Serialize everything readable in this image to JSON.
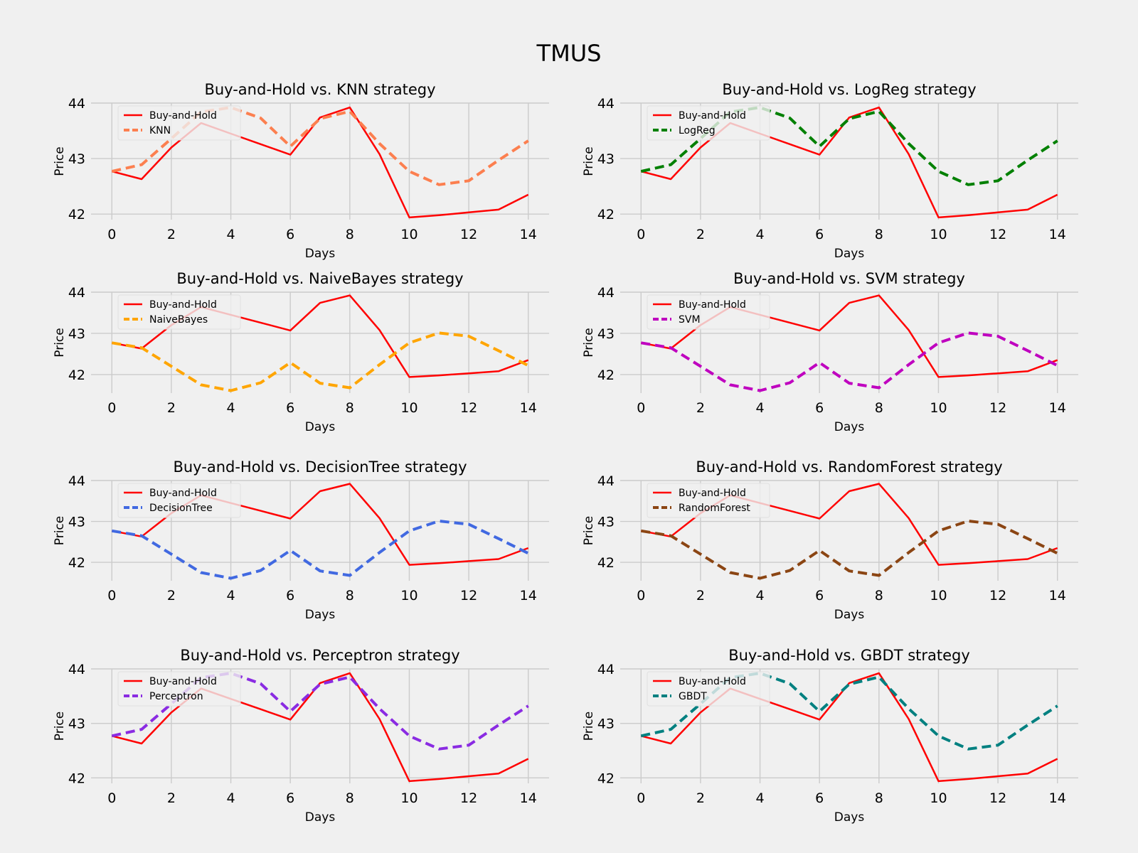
{
  "figure": {
    "title": "TMUS"
  },
  "colors": {
    "background": "#f0f0f0",
    "grid": "#cbcbcb",
    "buy_and_hold": "#ff0000"
  },
  "chart_data": [
    {
      "type": "line",
      "title": "Buy-and-Hold vs. KNN strategy",
      "xlabel": "Days",
      "ylabel": "Price",
      "xlim": [
        -0.7,
        14.7
      ],
      "ylim": [
        41.9,
        44.0
      ],
      "xticks": [
        0,
        2,
        4,
        6,
        8,
        10,
        12,
        14
      ],
      "yticks": [
        42,
        43,
        44
      ],
      "grid": true,
      "legend_position": "upper-left",
      "x": [
        0,
        1,
        2,
        3,
        4,
        5,
        6,
        7,
        8,
        9,
        10,
        11,
        12,
        13,
        14
      ],
      "series": [
        {
          "name": "Buy-and-Hold",
          "color": "#ff0000",
          "dash": "solid",
          "values": [
            42.77,
            42.63,
            43.2,
            43.64,
            43.45,
            43.26,
            43.07,
            43.74,
            43.92,
            43.08,
            41.94,
            41.98,
            42.03,
            42.08,
            42.35
          ]
        },
        {
          "name": "KNN",
          "color": "#fc7f4f",
          "dash": "dashed",
          "values": [
            42.77,
            42.89,
            43.36,
            43.84,
            43.92,
            43.73,
            43.22,
            43.72,
            43.85,
            43.27,
            42.77,
            42.53,
            42.6,
            42.97,
            43.32
          ]
        }
      ]
    },
    {
      "type": "line",
      "title": "Buy-and-Hold vs. LogReg strategy",
      "xlabel": "Days",
      "ylabel": "Price",
      "xlim": [
        -0.7,
        14.7
      ],
      "ylim": [
        41.9,
        44.0
      ],
      "xticks": [
        0,
        2,
        4,
        6,
        8,
        10,
        12,
        14
      ],
      "yticks": [
        42,
        43,
        44
      ],
      "grid": true,
      "legend_position": "upper-left",
      "x": [
        0,
        1,
        2,
        3,
        4,
        5,
        6,
        7,
        8,
        9,
        10,
        11,
        12,
        13,
        14
      ],
      "series": [
        {
          "name": "Buy-and-Hold",
          "color": "#ff0000",
          "dash": "solid",
          "values": [
            42.77,
            42.63,
            43.2,
            43.64,
            43.45,
            43.26,
            43.07,
            43.74,
            43.92,
            43.08,
            41.94,
            41.98,
            42.03,
            42.08,
            42.35
          ]
        },
        {
          "name": "LogReg",
          "color": "#008000",
          "dash": "dashed",
          "values": [
            42.77,
            42.89,
            43.36,
            43.84,
            43.92,
            43.73,
            43.22,
            43.72,
            43.85,
            43.27,
            42.77,
            42.53,
            42.6,
            42.97,
            43.32
          ]
        }
      ]
    },
    {
      "type": "line",
      "title": "Buy-and-Hold vs. NaiveBayes strategy",
      "xlabel": "Days",
      "ylabel": "Price",
      "xlim": [
        -0.7,
        14.7
      ],
      "ylim": [
        41.55,
        44.0
      ],
      "xticks": [
        0,
        2,
        4,
        6,
        8,
        10,
        12,
        14
      ],
      "yticks": [
        42,
        43,
        44
      ],
      "grid": true,
      "legend_position": "upper-left",
      "x": [
        0,
        1,
        2,
        3,
        4,
        5,
        6,
        7,
        8,
        9,
        10,
        11,
        12,
        13,
        14
      ],
      "series": [
        {
          "name": "Buy-and-Hold",
          "color": "#ff0000",
          "dash": "solid",
          "values": [
            42.77,
            42.63,
            43.2,
            43.64,
            43.45,
            43.26,
            43.07,
            43.74,
            43.92,
            43.08,
            41.94,
            41.98,
            42.03,
            42.08,
            42.35
          ]
        },
        {
          "name": "NaiveBayes",
          "color": "#ffa500",
          "dash": "dashed",
          "values": [
            42.77,
            42.65,
            42.2,
            41.75,
            41.61,
            41.8,
            42.29,
            41.79,
            41.68,
            42.24,
            42.77,
            43.01,
            42.93,
            42.58,
            42.22
          ]
        }
      ]
    },
    {
      "type": "line",
      "title": "Buy-and-Hold vs. SVM strategy",
      "xlabel": "Days",
      "ylabel": "Price",
      "xlim": [
        -0.7,
        14.7
      ],
      "ylim": [
        41.55,
        44.0
      ],
      "xticks": [
        0,
        2,
        4,
        6,
        8,
        10,
        12,
        14
      ],
      "yticks": [
        42,
        43,
        44
      ],
      "grid": true,
      "legend_position": "upper-left",
      "x": [
        0,
        1,
        2,
        3,
        4,
        5,
        6,
        7,
        8,
        9,
        10,
        11,
        12,
        13,
        14
      ],
      "series": [
        {
          "name": "Buy-and-Hold",
          "color": "#ff0000",
          "dash": "solid",
          "values": [
            42.77,
            42.63,
            43.2,
            43.64,
            43.45,
            43.26,
            43.07,
            43.74,
            43.92,
            43.08,
            41.94,
            41.98,
            42.03,
            42.08,
            42.35
          ]
        },
        {
          "name": "SVM",
          "color": "#bf00bf",
          "dash": "dashed",
          "values": [
            42.77,
            42.65,
            42.2,
            41.75,
            41.61,
            41.8,
            42.29,
            41.79,
            41.68,
            42.24,
            42.77,
            43.01,
            42.93,
            42.58,
            42.22
          ]
        }
      ]
    },
    {
      "type": "line",
      "title": "Buy-and-Hold vs. DecisionTree strategy",
      "xlabel": "Days",
      "ylabel": "Price",
      "xlim": [
        -0.7,
        14.7
      ],
      "ylim": [
        41.55,
        44.0
      ],
      "xticks": [
        0,
        2,
        4,
        6,
        8,
        10,
        12,
        14
      ],
      "yticks": [
        42,
        43,
        44
      ],
      "grid": true,
      "legend_position": "upper-left",
      "x": [
        0,
        1,
        2,
        3,
        4,
        5,
        6,
        7,
        8,
        9,
        10,
        11,
        12,
        13,
        14
      ],
      "series": [
        {
          "name": "Buy-and-Hold",
          "color": "#ff0000",
          "dash": "solid",
          "values": [
            42.77,
            42.63,
            43.2,
            43.64,
            43.45,
            43.26,
            43.07,
            43.74,
            43.92,
            43.08,
            41.94,
            41.98,
            42.03,
            42.08,
            42.35
          ]
        },
        {
          "name": "DecisionTree",
          "color": "#4169e1",
          "dash": "dashed",
          "values": [
            42.77,
            42.65,
            42.2,
            41.75,
            41.61,
            41.8,
            42.29,
            41.79,
            41.68,
            42.24,
            42.77,
            43.01,
            42.93,
            42.58,
            42.22
          ]
        }
      ]
    },
    {
      "type": "line",
      "title": "Buy-and-Hold vs. RandomForest strategy",
      "xlabel": "Days",
      "ylabel": "Price",
      "xlim": [
        -0.7,
        14.7
      ],
      "ylim": [
        41.55,
        44.0
      ],
      "xticks": [
        0,
        2,
        4,
        6,
        8,
        10,
        12,
        14
      ],
      "yticks": [
        42,
        43,
        44
      ],
      "grid": true,
      "legend_position": "upper-left",
      "x": [
        0,
        1,
        2,
        3,
        4,
        5,
        6,
        7,
        8,
        9,
        10,
        11,
        12,
        13,
        14
      ],
      "series": [
        {
          "name": "Buy-and-Hold",
          "color": "#ff0000",
          "dash": "solid",
          "values": [
            42.77,
            42.63,
            43.2,
            43.64,
            43.45,
            43.26,
            43.07,
            43.74,
            43.92,
            43.08,
            41.94,
            41.98,
            42.03,
            42.08,
            42.35
          ]
        },
        {
          "name": "RandomForest",
          "color": "#8b4513",
          "dash": "dashed",
          "values": [
            42.77,
            42.65,
            42.2,
            41.75,
            41.61,
            41.8,
            42.29,
            41.79,
            41.68,
            42.24,
            42.77,
            43.01,
            42.93,
            42.58,
            42.22
          ]
        }
      ]
    },
    {
      "type": "line",
      "title": "Buy-and-Hold vs. Perceptron strategy",
      "xlabel": "Days",
      "ylabel": "Price",
      "xlim": [
        -0.7,
        14.7
      ],
      "ylim": [
        41.9,
        44.0
      ],
      "xticks": [
        0,
        2,
        4,
        6,
        8,
        10,
        12,
        14
      ],
      "yticks": [
        42,
        43,
        44
      ],
      "grid": true,
      "legend_position": "upper-left",
      "x": [
        0,
        1,
        2,
        3,
        4,
        5,
        6,
        7,
        8,
        9,
        10,
        11,
        12,
        13,
        14
      ],
      "series": [
        {
          "name": "Buy-and-Hold",
          "color": "#ff0000",
          "dash": "solid",
          "values": [
            42.77,
            42.63,
            43.2,
            43.64,
            43.45,
            43.26,
            43.07,
            43.74,
            43.92,
            43.08,
            41.94,
            41.98,
            42.03,
            42.08,
            42.35
          ]
        },
        {
          "name": "Perceptron",
          "color": "#8a2be2",
          "dash": "dashed",
          "values": [
            42.77,
            42.89,
            43.36,
            43.84,
            43.92,
            43.73,
            43.22,
            43.72,
            43.85,
            43.27,
            42.77,
            42.53,
            42.6,
            42.97,
            43.32
          ]
        }
      ]
    },
    {
      "type": "line",
      "title": "Buy-and-Hold vs. GBDT strategy",
      "xlabel": "Days",
      "ylabel": "Price",
      "xlim": [
        -0.7,
        14.7
      ],
      "ylim": [
        41.9,
        44.0
      ],
      "xticks": [
        0,
        2,
        4,
        6,
        8,
        10,
        12,
        14
      ],
      "yticks": [
        42,
        43,
        44
      ],
      "grid": true,
      "legend_position": "upper-left",
      "x": [
        0,
        1,
        2,
        3,
        4,
        5,
        6,
        7,
        8,
        9,
        10,
        11,
        12,
        13,
        14
      ],
      "series": [
        {
          "name": "Buy-and-Hold",
          "color": "#ff0000",
          "dash": "solid",
          "values": [
            42.77,
            42.63,
            43.2,
            43.64,
            43.45,
            43.26,
            43.07,
            43.74,
            43.92,
            43.08,
            41.94,
            41.98,
            42.03,
            42.08,
            42.35
          ]
        },
        {
          "name": "GBDT",
          "color": "#008080",
          "dash": "dashed",
          "values": [
            42.77,
            42.89,
            43.36,
            43.84,
            43.92,
            43.73,
            43.22,
            43.72,
            43.85,
            43.27,
            42.77,
            42.53,
            42.6,
            42.97,
            43.32
          ]
        }
      ]
    }
  ]
}
